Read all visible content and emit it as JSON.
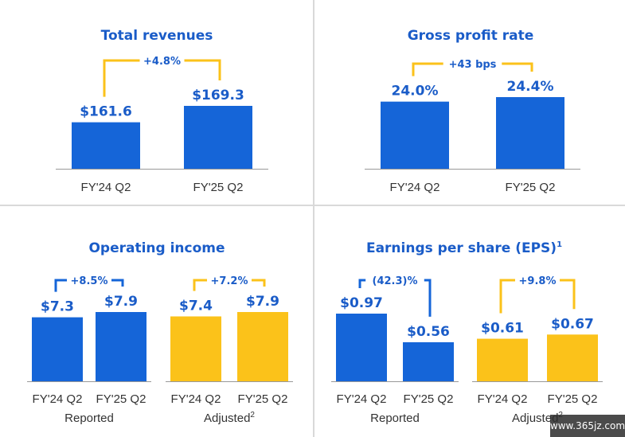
{
  "colors": {
    "blue": "#1565d8",
    "yellow": "#fbc21a",
    "title": "#1a5cc8",
    "divider": "#d9d9d9",
    "baseline": "#999999"
  },
  "watermark": "www.365jz.com",
  "chart_data": [
    {
      "type": "bar",
      "title": "Total revenues",
      "categories": [
        "FY'24 Q2",
        "FY'25 Q2"
      ],
      "series": [
        {
          "values": [
            161.6,
            169.3
          ],
          "labels": [
            "$161.6",
            "$169.3"
          ],
          "colors": [
            "blue",
            "blue"
          ]
        }
      ],
      "changes": [
        {
          "label": "+4.8%",
          "from": 0,
          "to": 1,
          "color": "yellow"
        }
      ],
      "groups": []
    },
    {
      "type": "bar",
      "title": "Gross profit rate",
      "categories": [
        "FY'24 Q2",
        "FY'25 Q2"
      ],
      "series": [
        {
          "values": [
            24.0,
            24.4
          ],
          "labels": [
            "24.0%",
            "24.4%"
          ],
          "colors": [
            "blue",
            "blue"
          ]
        }
      ],
      "changes": [
        {
          "label": "+43 bps",
          "from": 0,
          "to": 1,
          "color": "yellow"
        }
      ],
      "groups": []
    },
    {
      "type": "bar",
      "title": "Operating income",
      "categories": [
        "FY'24 Q2",
        "FY'25 Q2",
        "FY'24 Q2",
        "FY'25 Q2"
      ],
      "series": [
        {
          "values": [
            7.3,
            7.9,
            7.4,
            7.9
          ],
          "labels": [
            "$7.3",
            "$7.9",
            "$7.4",
            "$7.9"
          ],
          "colors": [
            "blue",
            "blue",
            "yellow",
            "yellow"
          ]
        }
      ],
      "changes": [
        {
          "label": "+8.5%",
          "from": 0,
          "to": 1,
          "color": "blue"
        },
        {
          "label": "+7.2%",
          "from": 2,
          "to": 3,
          "color": "yellow"
        }
      ],
      "groups": [
        {
          "label": "Reported",
          "sup": ""
        },
        {
          "label": "Adjusted",
          "sup": "2"
        }
      ]
    },
    {
      "type": "bar",
      "title": "Earnings per share (EPS)",
      "title_sup": "1",
      "categories": [
        "FY'24 Q2",
        "FY'25 Q2",
        "FY'24 Q2",
        "FY'25 Q2"
      ],
      "series": [
        {
          "values": [
            0.97,
            0.56,
            0.61,
            0.67
          ],
          "labels": [
            "$0.97",
            "$0.56",
            "$0.61",
            "$0.67"
          ],
          "colors": [
            "blue",
            "blue",
            "yellow",
            "yellow"
          ]
        }
      ],
      "changes": [
        {
          "label": "(42.3)%",
          "from": 0,
          "to": 1,
          "color": "blue"
        },
        {
          "label": "+9.8%",
          "from": 2,
          "to": 3,
          "color": "yellow"
        }
      ],
      "groups": [
        {
          "label": "Reported",
          "sup": ""
        },
        {
          "label": "Adjusted",
          "sup": "2"
        }
      ]
    }
  ]
}
